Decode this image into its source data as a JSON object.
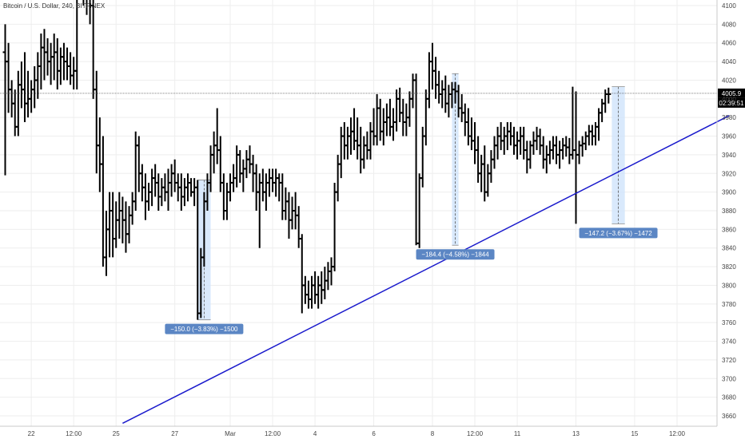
{
  "colors": {
    "bars": "#000000",
    "trendline": "#1a1acc",
    "grid": "#eeeeee",
    "measure_fill": "#cfe3fb",
    "label_bg": "#5b86c4",
    "label_text": "#ffffff",
    "price_badge": "#000000",
    "time_badge": "#000000"
  },
  "chart_data": {
    "type": "ohlc",
    "title": "Bitcoin / U.S. Dollar, 240, BITFINEX",
    "y_axis": {
      "range": [
        3650,
        4110
      ],
      "ticks": [
        3660,
        3680,
        3700,
        3720,
        3740,
        3760,
        3780,
        3800,
        3820,
        3840,
        3860,
        3880,
        3900,
        3920,
        3940,
        3960,
        3980,
        4000,
        4020,
        4040,
        4060,
        4080,
        4100
      ]
    },
    "x_axis": {
      "ticks": [
        {
          "label": "22",
          "bar": 8
        },
        {
          "label": "12:00",
          "bar": 21
        },
        {
          "label": "25",
          "bar": 34
        },
        {
          "label": "27",
          "bar": 52
        },
        {
          "label": "Mar",
          "bar": 69
        },
        {
          "label": "12:00",
          "bar": 82
        },
        {
          "label": "4",
          "bar": 95
        },
        {
          "label": "6",
          "bar": 113
        },
        {
          "label": "8",
          "bar": 131
        },
        {
          "label": "12:00",
          "bar": 144
        },
        {
          "label": "11",
          "bar": 157
        },
        {
          "label": "13",
          "bar": 175
        },
        {
          "label": "15",
          "bar": 193
        },
        {
          "label": "12:00",
          "bar": 206
        }
      ]
    },
    "last_price": {
      "label": "4005.9",
      "value": 4005.9,
      "countdown": "02:39:51"
    },
    "trendline": {
      "start": {
        "bar": 36,
        "price": 3652
      },
      "end": {
        "bar": 222,
        "price": 3982
      }
    },
    "measurements": [
      {
        "label": "−150.0 (−3.83%) −1500",
        "bar_start": 59,
        "bar_end": 63,
        "high": 3913,
        "low": 3763
      },
      {
        "label": "−184.4 (−4.58%) −1844",
        "bar_start": 137,
        "bar_end": 139,
        "high": 4027,
        "low": 3843
      },
      {
        "label": "−147.2 (−3.67%) −1472",
        "bar_start": 186,
        "bar_end": 190,
        "high": 4013,
        "low": 3866
      }
    ],
    "ohlc": [
      [
        4050,
        4080,
        3918,
        4040
      ],
      [
        4040,
        4060,
        3985,
        4010
      ],
      [
        4010,
        4020,
        3980,
        3995
      ],
      [
        3995,
        4010,
        3960,
        3970
      ],
      [
        3970,
        4030,
        3960,
        4015
      ],
      [
        4015,
        4040,
        3990,
        4010
      ],
      [
        4010,
        4050,
        3975,
        3995
      ],
      [
        3995,
        4030,
        3980,
        4000
      ],
      [
        4000,
        4020,
        3985,
        4010
      ],
      [
        4010,
        4035,
        3990,
        4020
      ],
      [
        4020,
        4050,
        4000,
        4035
      ],
      [
        4035,
        4070,
        4010,
        4055
      ],
      [
        4055,
        4075,
        4020,
        4050
      ],
      [
        4050,
        4065,
        4025,
        4040
      ],
      [
        4040,
        4060,
        4015,
        4045
      ],
      [
        4045,
        4070,
        4020,
        4050
      ],
      [
        4050,
        4065,
        4010,
        4030
      ],
      [
        4030,
        4055,
        4015,
        4045
      ],
      [
        4045,
        4060,
        4020,
        4040
      ],
      [
        4040,
        4055,
        4020,
        4035
      ],
      [
        4035,
        4050,
        4015,
        4025
      ],
      [
        4025,
        4045,
        4010,
        4030
      ],
      [
        4030,
        4150,
        4010,
        4140
      ],
      [
        4140,
        4160,
        4110,
        4130
      ],
      [
        4130,
        4160,
        4100,
        4120
      ],
      [
        4120,
        4150,
        4090,
        4110
      ],
      [
        4110,
        4140,
        4080,
        4100
      ],
      [
        4100,
        4120,
        4000,
        4010
      ],
      [
        4010,
        4030,
        3920,
        3950
      ],
      [
        3950,
        3980,
        3900,
        3930
      ],
      [
        3930,
        3960,
        3820,
        3830
      ],
      [
        3830,
        3880,
        3810,
        3860
      ],
      [
        3860,
        3900,
        3830,
        3880
      ],
      [
        3880,
        3900,
        3830,
        3850
      ],
      [
        3850,
        3890,
        3840,
        3870
      ],
      [
        3870,
        3900,
        3850,
        3880
      ],
      [
        3880,
        3895,
        3845,
        3870
      ],
      [
        3870,
        3890,
        3835,
        3855
      ],
      [
        3855,
        3885,
        3845,
        3875
      ],
      [
        3875,
        3900,
        3865,
        3890
      ],
      [
        3890,
        3965,
        3880,
        3950
      ],
      [
        3950,
        3960,
        3900,
        3920
      ],
      [
        3920,
        3930,
        3890,
        3905
      ],
      [
        3905,
        3920,
        3870,
        3890
      ],
      [
        3890,
        3910,
        3880,
        3900
      ],
      [
        3900,
        3925,
        3885,
        3915
      ],
      [
        3915,
        3930,
        3895,
        3910
      ],
      [
        3910,
        3920,
        3880,
        3895
      ],
      [
        3895,
        3915,
        3885,
        3905
      ],
      [
        3905,
        3920,
        3890,
        3900
      ],
      [
        3900,
        3925,
        3880,
        3910
      ],
      [
        3910,
        3930,
        3895,
        3920
      ],
      [
        3920,
        3935,
        3900,
        3910
      ],
      [
        3910,
        3920,
        3890,
        3905
      ],
      [
        3905,
        3920,
        3880,
        3895
      ],
      [
        3895,
        3915,
        3885,
        3905
      ],
      [
        3905,
        3920,
        3890,
        3910
      ],
      [
        3910,
        3915,
        3895,
        3900
      ],
      [
        3900,
        3915,
        3885,
        3905
      ],
      [
        3905,
        3913,
        3763,
        3770
      ],
      [
        3770,
        3840,
        3765,
        3830
      ],
      [
        3830,
        3900,
        3820,
        3890
      ],
      [
        3890,
        3920,
        3880,
        3910
      ],
      [
        3910,
        3950,
        3900,
        3940
      ],
      [
        3940,
        3965,
        3920,
        3950
      ],
      [
        3950,
        3990,
        3930,
        3945
      ],
      [
        3945,
        3960,
        3900,
        3910
      ],
      [
        3910,
        3920,
        3870,
        3880
      ],
      [
        3880,
        3910,
        3870,
        3900
      ],
      [
        3900,
        3920,
        3890,
        3910
      ],
      [
        3910,
        3930,
        3900,
        3915
      ],
      [
        3915,
        3950,
        3905,
        3940
      ],
      [
        3940,
        3945,
        3910,
        3920
      ],
      [
        3920,
        3935,
        3900,
        3925
      ],
      [
        3925,
        3945,
        3915,
        3935
      ],
      [
        3935,
        3950,
        3920,
        3930
      ],
      [
        3930,
        3940,
        3900,
        3920
      ],
      [
        3920,
        3930,
        3880,
        3900
      ],
      [
        3900,
        3920,
        3840,
        3910
      ],
      [
        3910,
        3925,
        3890,
        3900
      ],
      [
        3900,
        3920,
        3880,
        3910
      ],
      [
        3910,
        3925,
        3895,
        3915
      ],
      [
        3915,
        3925,
        3900,
        3910
      ],
      [
        3910,
        3925,
        3895,
        3915
      ],
      [
        3915,
        3920,
        3890,
        3910
      ],
      [
        3910,
        3920,
        3870,
        3880
      ],
      [
        3880,
        3905,
        3870,
        3890
      ],
      [
        3890,
        3900,
        3850,
        3870
      ],
      [
        3870,
        3895,
        3860,
        3880
      ],
      [
        3880,
        3900,
        3860,
        3875
      ],
      [
        3875,
        3885,
        3840,
        3850
      ],
      [
        3850,
        3855,
        3770,
        3800
      ],
      [
        3800,
        3810,
        3780,
        3790
      ],
      [
        3790,
        3805,
        3775,
        3785
      ],
      [
        3785,
        3810,
        3775,
        3800
      ],
      [
        3800,
        3815,
        3780,
        3790
      ],
      [
        3790,
        3810,
        3775,
        3800
      ],
      [
        3800,
        3815,
        3780,
        3795
      ],
      [
        3795,
        3820,
        3785,
        3805
      ],
      [
        3805,
        3825,
        3795,
        3815
      ],
      [
        3815,
        3830,
        3800,
        3820
      ],
      [
        3820,
        3910,
        3815,
        3900
      ],
      [
        3900,
        3940,
        3890,
        3930
      ],
      [
        3930,
        3970,
        3915,
        3960
      ],
      [
        3960,
        3975,
        3935,
        3950
      ],
      [
        3950,
        3970,
        3935,
        3960
      ],
      [
        3960,
        3980,
        3940,
        3965
      ],
      [
        3965,
        3990,
        3945,
        3955
      ],
      [
        3955,
        3980,
        3935,
        3950
      ],
      [
        3950,
        3970,
        3920,
        3935
      ],
      [
        3935,
        3960,
        3925,
        3950
      ],
      [
        3950,
        3965,
        3935,
        3945
      ],
      [
        3945,
        3975,
        3935,
        3965
      ],
      [
        3965,
        3990,
        3950,
        3960
      ],
      [
        3960,
        4005,
        3950,
        3990
      ],
      [
        3990,
        4000,
        3955,
        3965
      ],
      [
        3965,
        3990,
        3950,
        3975
      ],
      [
        3975,
        3995,
        3960,
        3980
      ],
      [
        3980,
        4000,
        3960,
        3970
      ],
      [
        3970,
        3990,
        3955,
        3975
      ],
      [
        3975,
        4010,
        3965,
        4000
      ],
      [
        4000,
        4012,
        3975,
        3985
      ],
      [
        3985,
        4000,
        3960,
        3975
      ],
      [
        3975,
        3995,
        3960,
        3980
      ],
      [
        3980,
        4008,
        3970,
        4000
      ],
      [
        4000,
        4027,
        3990,
        4020
      ],
      [
        4020,
        4027,
        3843,
        3845
      ],
      [
        3845,
        3920,
        3840,
        3915
      ],
      [
        3915,
        3970,
        3905,
        3960
      ],
      [
        3960,
        4010,
        3950,
        4000
      ],
      [
        4000,
        4050,
        3990,
        4040
      ],
      [
        4040,
        4060,
        4010,
        4030
      ],
      [
        4030,
        4045,
        4000,
        4015
      ],
      [
        4015,
        4030,
        3995,
        4005
      ],
      [
        4005,
        4020,
        3990,
        4010
      ],
      [
        4010,
        4025,
        3985,
        3995
      ],
      [
        3995,
        4015,
        3980,
        4005
      ],
      [
        4005,
        4018,
        3990,
        4010
      ],
      [
        4010,
        4018,
        3995,
        4008
      ],
      [
        4008,
        4015,
        3980,
        3990
      ],
      [
        3990,
        4005,
        3975,
        3985
      ],
      [
        3985,
        3995,
        3960,
        3975
      ],
      [
        3975,
        3990,
        3950,
        3960
      ],
      [
        3960,
        3980,
        3945,
        3955
      ],
      [
        3955,
        3975,
        3930,
        3945
      ],
      [
        3945,
        3960,
        3910,
        3920
      ],
      [
        3920,
        3940,
        3900,
        3930
      ],
      [
        3930,
        3950,
        3890,
        3900
      ],
      [
        3900,
        3930,
        3895,
        3920
      ],
      [
        3920,
        3945,
        3910,
        3935
      ],
      [
        3935,
        3960,
        3925,
        3950
      ],
      [
        3950,
        3970,
        3935,
        3960
      ],
      [
        3960,
        3975,
        3945,
        3955
      ],
      [
        3955,
        3970,
        3940,
        3960
      ],
      [
        3960,
        3975,
        3945,
        3965
      ],
      [
        3965,
        3975,
        3950,
        3960
      ],
      [
        3960,
        3970,
        3940,
        3950
      ],
      [
        3950,
        3965,
        3935,
        3955
      ],
      [
        3955,
        3970,
        3940,
        3960
      ],
      [
        3960,
        3970,
        3935,
        3945
      ],
      [
        3945,
        3955,
        3920,
        3935
      ],
      [
        3935,
        3955,
        3925,
        3950
      ],
      [
        3950,
        3965,
        3940,
        3955
      ],
      [
        3955,
        3970,
        3945,
        3960
      ],
      [
        3960,
        3968,
        3940,
        3950
      ],
      [
        3950,
        3960,
        3925,
        3935
      ],
      [
        3935,
        3950,
        3920,
        3940
      ],
      [
        3940,
        3955,
        3930,
        3945
      ],
      [
        3945,
        3960,
        3935,
        3950
      ],
      [
        3950,
        3960,
        3930,
        3940
      ],
      [
        3940,
        3955,
        3925,
        3945
      ],
      [
        3945,
        3958,
        3935,
        3950
      ],
      [
        3950,
        3960,
        3938,
        3948
      ],
      [
        3948,
        3958,
        3930,
        3940
      ],
      [
        3940,
        4013,
        3935,
        3945
      ],
      [
        3945,
        4008,
        3866,
        3940
      ],
      [
        3940,
        3955,
        3930,
        3950
      ],
      [
        3950,
        3960,
        3938,
        3952
      ],
      [
        3952,
        3965,
        3945,
        3960
      ],
      [
        3960,
        3972,
        3950,
        3965
      ],
      [
        3965,
        3972,
        3950,
        3960
      ],
      [
        3960,
        3975,
        3950,
        3970
      ],
      [
        3970,
        3990,
        3955,
        3985
      ],
      [
        3985,
        4000,
        3975,
        3995
      ],
      [
        3995,
        4010,
        3985,
        4005
      ],
      [
        4005,
        4012,
        3995,
        4005
      ]
    ]
  }
}
